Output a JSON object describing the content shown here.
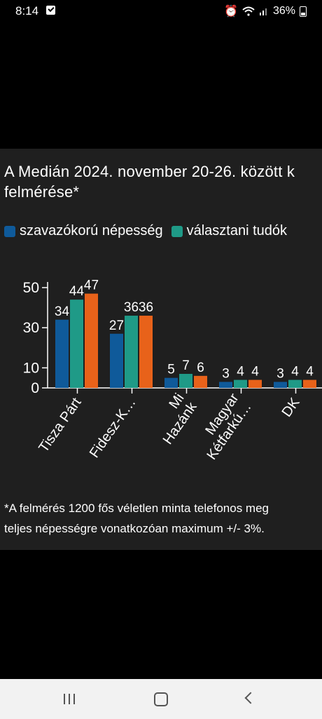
{
  "status_bar": {
    "time": "8:14",
    "battery": "36%",
    "icons": [
      "check-notification-icon",
      "alarm-icon",
      "wifi-icon",
      "signal-icon",
      "battery-icon"
    ]
  },
  "chart_card": {
    "title": "A Medián 2024. november 20-26. között k\nfelmérése*",
    "footnote": "*A felmérés 1200 fős véletlen minta telefonos meg\nteljes népességre vonatkozóan maximum +/- 3%."
  },
  "chart_data": {
    "type": "bar",
    "categories": [
      "Tisza Párt",
      "Fidesz-K…",
      "Mi\nHazánk",
      "Magyar\nKétfarkú…",
      "DK"
    ],
    "series": [
      {
        "name": "szavazókorú népesség",
        "color": "#0f5a9a",
        "values": [
          34,
          27,
          5,
          3,
          3
        ]
      },
      {
        "name": "választani tudók",
        "color": "#1f9a87",
        "values": [
          44,
          36,
          7,
          4,
          4
        ]
      },
      {
        "name": "",
        "color": "#e8621a",
        "values": [
          47,
          36,
          6,
          4,
          4
        ]
      }
    ],
    "yticks": [
      0,
      10,
      30,
      50
    ],
    "ylim": [
      0,
      50
    ],
    "legend": "top",
    "grid": false
  },
  "nav_bar": {
    "icons": [
      "recent-apps-icon",
      "home-icon",
      "back-icon"
    ]
  }
}
